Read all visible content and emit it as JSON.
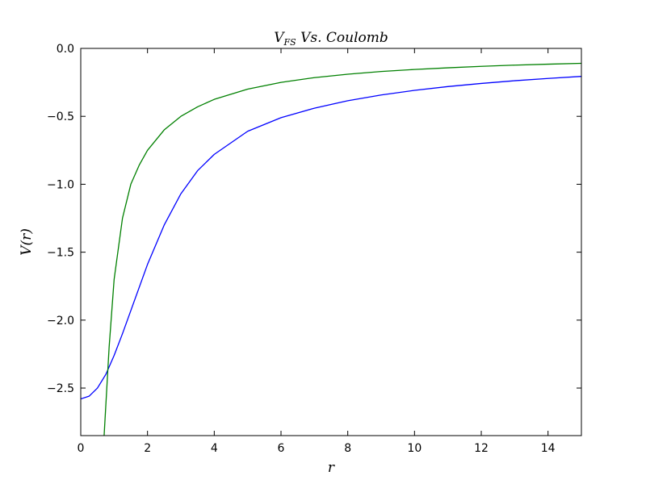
{
  "chart_data": {
    "type": "line",
    "title": {
      "main": "V",
      "sub": "FS",
      "rest": " Vs. Coulomb"
    },
    "xlabel": "r",
    "ylabel": "V(r)",
    "xlim": [
      0,
      15
    ],
    "ylim": [
      -2.85,
      0.0
    ],
    "x_ticks": [
      0,
      2,
      4,
      6,
      8,
      10,
      12,
      14
    ],
    "x_tick_labels": [
      "0",
      "2",
      "4",
      "6",
      "8",
      "10",
      "12",
      "14"
    ],
    "y_ticks": [
      0.0,
      -0.5,
      -1.0,
      -1.5,
      -2.0,
      -2.5
    ],
    "y_tick_labels": [
      "0.0",
      "−0.5",
      "−1.0",
      "−1.5",
      "−2.0",
      "−2.5"
    ],
    "grid": false,
    "legend": "none",
    "series": [
      {
        "color": "#0000ff",
        "x": [
          0,
          0.25,
          0.5,
          0.75,
          1.0,
          1.25,
          1.5,
          1.75,
          2.0,
          2.5,
          3.0,
          3.5,
          4.0,
          5.0,
          6.0,
          7.0,
          8.0,
          9.0,
          10.0,
          11.0,
          12.0,
          13.0,
          14.0,
          15.0
        ],
        "y": [
          -2.58,
          -2.56,
          -2.5,
          -2.4,
          -2.26,
          -2.1,
          -1.93,
          -1.76,
          -1.59,
          -1.3,
          -1.07,
          -0.9,
          -0.78,
          -0.61,
          -0.51,
          -0.44,
          -0.385,
          -0.343,
          -0.309,
          -0.281,
          -0.258,
          -0.238,
          -0.221,
          -0.206
        ]
      },
      {
        "color": "#008000",
        "x": [
          0.7,
          0.85,
          1.0,
          1.25,
          1.5,
          1.75,
          2.0,
          2.5,
          3.0,
          3.5,
          4.0,
          5.0,
          6.0,
          7.0,
          8.0,
          9.0,
          10.0,
          11.0,
          12.0,
          13.0,
          14.0,
          15.0
        ],
        "y": [
          -2.85,
          -2.2,
          -1.7,
          -1.25,
          -1.0,
          -0.86,
          -0.75,
          -0.6,
          -0.5,
          -0.43,
          -0.375,
          -0.3,
          -0.25,
          -0.215,
          -0.19,
          -0.17,
          -0.155,
          -0.143,
          -0.132,
          -0.123,
          -0.116,
          -0.11
        ]
      }
    ]
  }
}
